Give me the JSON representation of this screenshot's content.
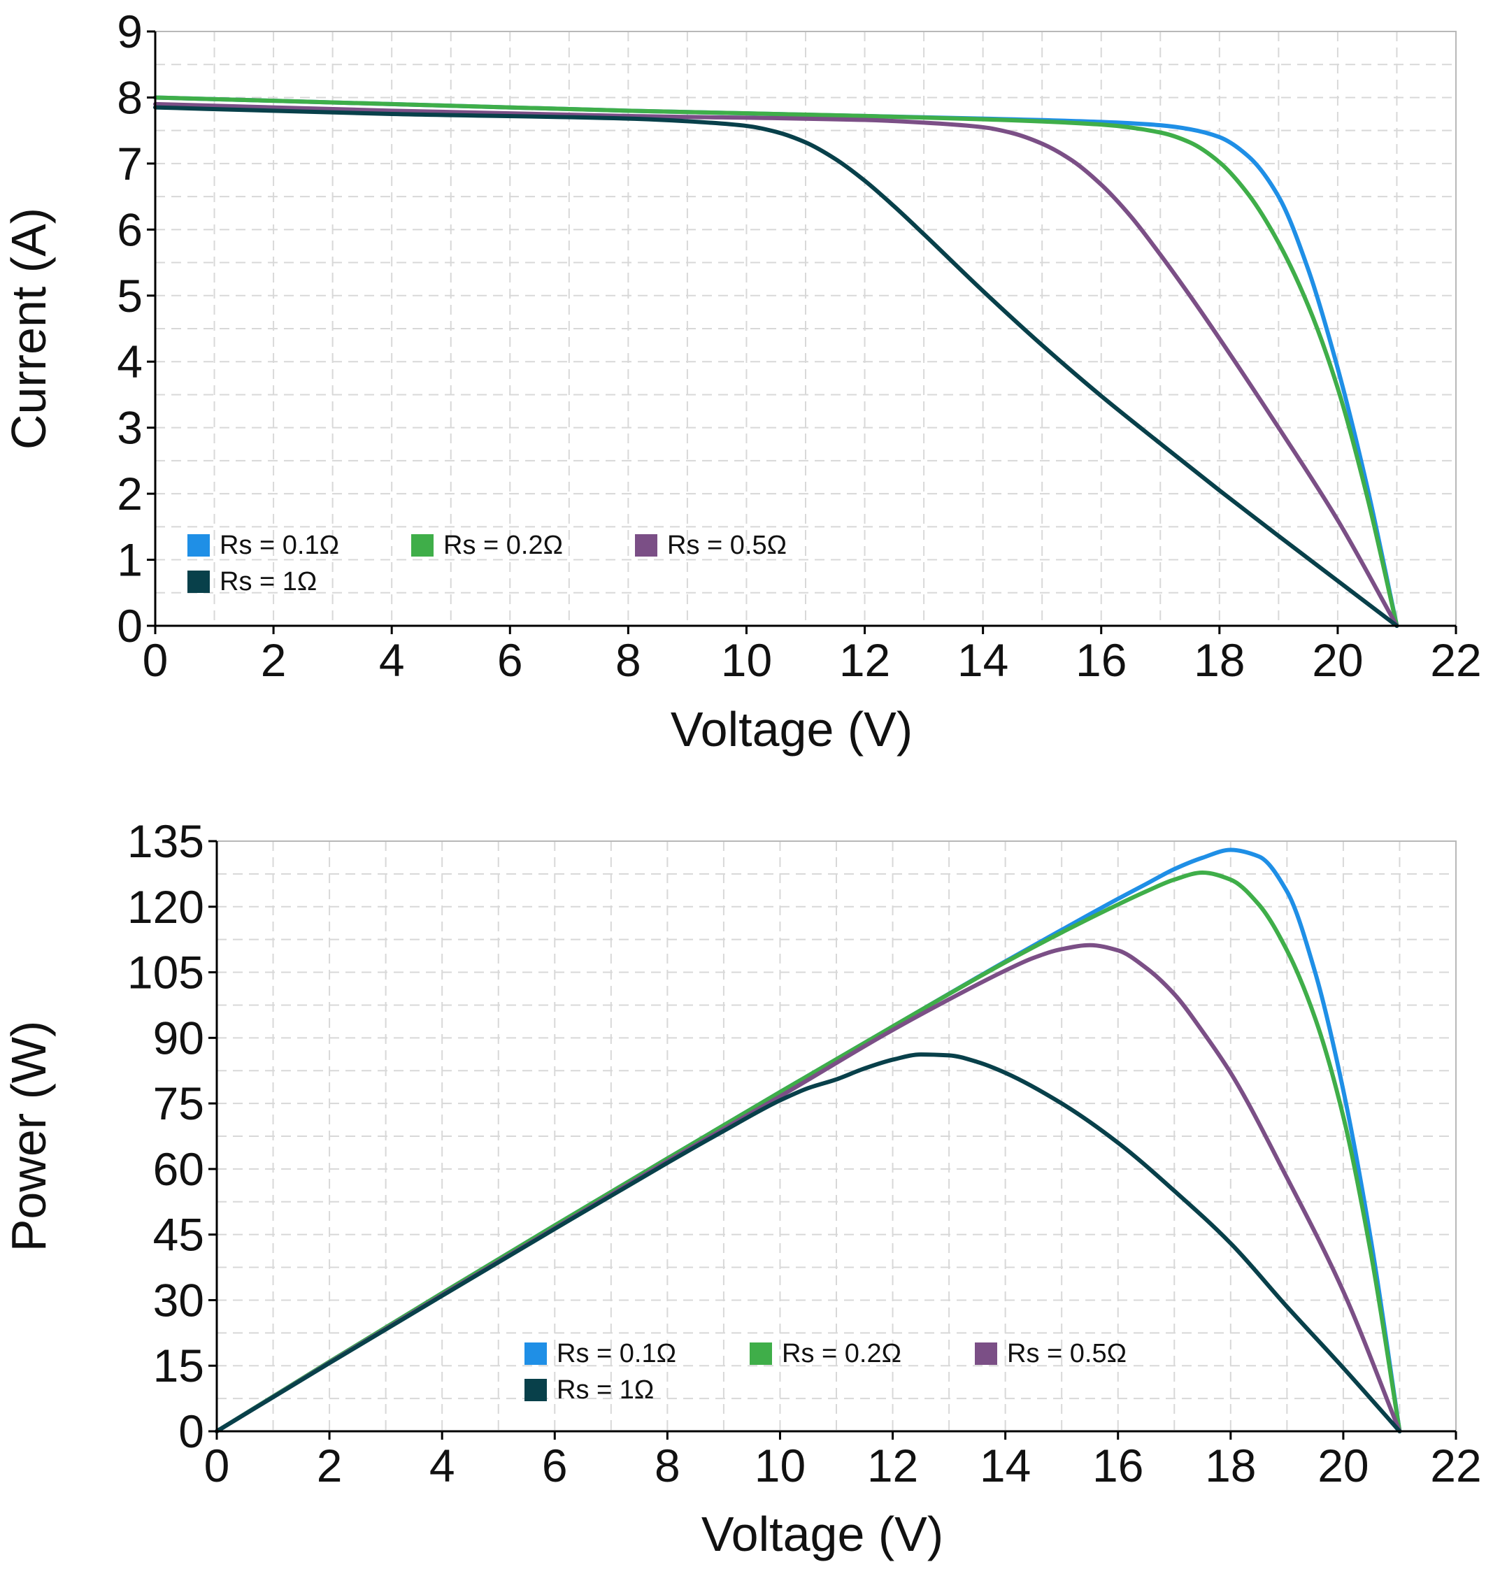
{
  "chart_data": [
    {
      "type": "line",
      "xlabel": "Voltage (V)",
      "ylabel": "Current (A)",
      "xlim": [
        0,
        22
      ],
      "ylim": [
        0,
        9
      ],
      "xticks": [
        "0",
        "2",
        "4",
        "6",
        "8",
        "10",
        "12",
        "14",
        "16",
        "18",
        "20",
        "22"
      ],
      "yticks": [
        "0",
        "1",
        "2",
        "3",
        "4",
        "5",
        "6",
        "7",
        "8",
        "9"
      ],
      "grid": true,
      "legend_position": "bottom-left",
      "series": [
        {
          "name": "Rs = 0.1Ω",
          "color": "#1f8fe6",
          "x": [
            0,
            4,
            8,
            12,
            14,
            16,
            17,
            17.5,
            18,
            18.5,
            19,
            19.5,
            20,
            20.5,
            21
          ],
          "y": [
            8.0,
            7.9,
            7.8,
            7.72,
            7.68,
            7.63,
            7.58,
            7.52,
            7.4,
            7.1,
            6.5,
            5.4,
            3.9,
            2.1,
            0
          ]
        },
        {
          "name": "Rs = 0.2Ω",
          "color": "#3fae49",
          "x": [
            0,
            4,
            8,
            12,
            14,
            16,
            17,
            17.5,
            18,
            18.5,
            19,
            19.5,
            20,
            20.5,
            21
          ],
          "y": [
            8.0,
            7.9,
            7.8,
            7.72,
            7.67,
            7.59,
            7.47,
            7.32,
            7.02,
            6.52,
            5.8,
            4.85,
            3.6,
            1.95,
            0
          ]
        },
        {
          "name": "Rs = 0.5Ω",
          "color": "#7b4f86",
          "x": [
            0,
            4,
            8,
            12,
            13,
            14,
            14.5,
            15,
            15.5,
            16,
            16.5,
            17,
            17.5,
            18,
            19,
            20,
            21
          ],
          "y": [
            7.9,
            7.8,
            7.72,
            7.66,
            7.62,
            7.55,
            7.46,
            7.3,
            7.05,
            6.68,
            6.2,
            5.62,
            5.0,
            4.35,
            3.0,
            1.6,
            0
          ]
        },
        {
          "name": "Rs = 1Ω",
          "color": "#08404a",
          "x": [
            0,
            4,
            8,
            9,
            10,
            10.5,
            11,
            11.5,
            12,
            12.5,
            13,
            14,
            15,
            16,
            17,
            18,
            19,
            20,
            21
          ],
          "y": [
            7.85,
            7.75,
            7.68,
            7.64,
            7.57,
            7.48,
            7.32,
            7.07,
            6.74,
            6.35,
            5.93,
            5.07,
            4.25,
            3.48,
            2.76,
            2.05,
            1.36,
            0.68,
            0
          ]
        }
      ]
    },
    {
      "type": "line",
      "xlabel": "Voltage (V)",
      "ylabel": "Power (W)",
      "xlim": [
        0,
        22
      ],
      "ylim": [
        0,
        135
      ],
      "xticks": [
        "0",
        "2",
        "4",
        "6",
        "8",
        "10",
        "12",
        "14",
        "16",
        "18",
        "20",
        "22"
      ],
      "yticks": [
        "0",
        "15",
        "30",
        "45",
        "60",
        "75",
        "90",
        "105",
        "120",
        "135"
      ],
      "grid": true,
      "legend_position": "bottom-center",
      "series": [
        {
          "name": "Rs = 0.1Ω",
          "color": "#1f8fe6",
          "x": [
            0,
            2,
            4,
            6,
            8,
            10,
            12,
            14,
            15,
            16,
            16.5,
            17,
            17.5,
            18,
            18.5,
            19,
            19.5,
            20,
            20.5,
            21
          ],
          "y": [
            0,
            15.9,
            31.6,
            47.1,
            62.4,
            77.6,
            92.6,
            107.5,
            114.7,
            121.8,
            125.2,
            128.6,
            131.2,
            133.0,
            131.5,
            123.5,
            105,
            78,
            43,
            0
          ]
        },
        {
          "name": "Rs = 0.2Ω",
          "color": "#3fae49",
          "x": [
            0,
            2,
            4,
            6,
            8,
            10,
            12,
            14,
            15,
            16,
            16.5,
            17,
            17.5,
            18,
            18.5,
            19,
            19.5,
            20,
            20.5,
            21
          ],
          "y": [
            0,
            15.9,
            31.6,
            47.1,
            62.4,
            77.6,
            92.6,
            107.3,
            114.1,
            120.5,
            123.5,
            126.2,
            127.8,
            126.2,
            120.5,
            110,
            94.5,
            72,
            40,
            0
          ]
        },
        {
          "name": "Rs = 0.5Ω",
          "color": "#7b4f86",
          "x": [
            0,
            2,
            4,
            6,
            8,
            10,
            12,
            13,
            14,
            14.5,
            15,
            15.5,
            16,
            16.5,
            17,
            17.5,
            18,
            19,
            20,
            21
          ],
          "y": [
            0,
            15.7,
            31.2,
            46.5,
            61.8,
            76.6,
            91.8,
            98.8,
            105.4,
            108.3,
            110.3,
            111.2,
            110,
            106,
            100,
            91.5,
            82,
            58,
            32,
            0
          ]
        },
        {
          "name": "Rs = 1Ω",
          "color": "#08404a",
          "x": [
            0,
            2,
            4,
            6,
            8,
            9,
            10,
            10.5,
            11,
            11.5,
            12,
            12.5,
            13,
            13.5,
            14,
            15,
            16,
            17,
            18,
            19,
            20,
            21
          ],
          "y": [
            0,
            15.6,
            31.0,
            46.3,
            61.4,
            68.7,
            75.7,
            78.5,
            80.5,
            83.0,
            85.0,
            86.2,
            86.0,
            84.5,
            82.0,
            75.0,
            66.0,
            55.0,
            43.0,
            28.5,
            14.5,
            0
          ]
        }
      ]
    }
  ]
}
